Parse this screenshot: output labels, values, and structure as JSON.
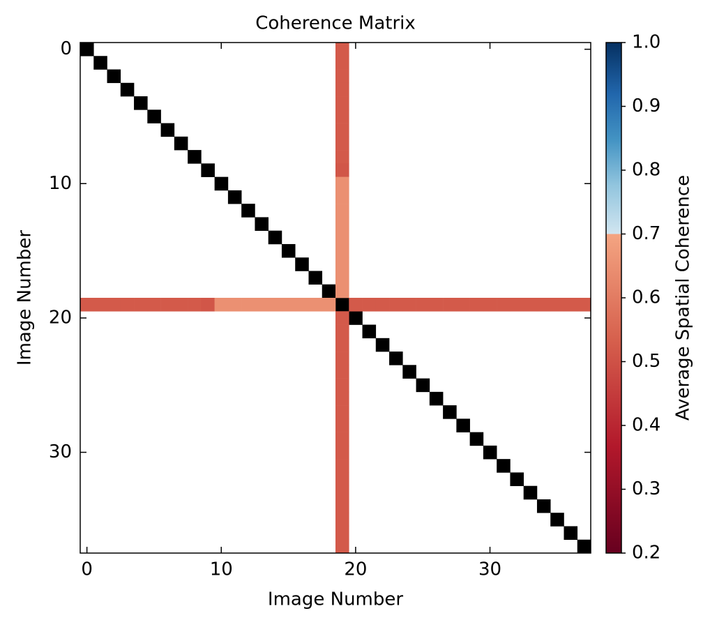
{
  "chart_data": {
    "type": "heatmap",
    "title": "Coherence Matrix",
    "x_label": "Image Number",
    "y_label": "Image Number",
    "colorbar_label": "Average Spatial Coherence",
    "colormap": "RdBu",
    "n": 38,
    "diagonal_color": "#000000",
    "xlim": [
      -0.5,
      37.5
    ],
    "ylim": [
      37.5,
      -0.5
    ],
    "xticks": [
      0,
      10,
      20,
      30
    ],
    "yticks": [
      0,
      10,
      20,
      30
    ],
    "clim": [
      0.2,
      1
    ],
    "cticks": [
      0.2,
      0.3,
      0.4,
      0.5,
      0.6,
      0.7,
      0.8,
      0.9,
      {
        "value": 1,
        "label": "1.0"
      }
    ],
    "cells": [
      [
        0,
        19,
        0.52
      ],
      [
        1,
        19,
        0.52
      ],
      [
        2,
        19,
        0.52
      ],
      [
        3,
        19,
        0.52
      ],
      [
        4,
        19,
        0.52
      ],
      [
        5,
        19,
        0.52
      ],
      [
        6,
        19,
        0.52
      ],
      [
        7,
        19,
        0.52
      ],
      [
        8,
        19,
        0.52
      ],
      [
        9,
        19,
        0.51
      ],
      [
        10,
        19,
        0.65
      ],
      [
        11,
        19,
        0.65
      ],
      [
        12,
        19,
        0.65
      ],
      [
        13,
        19,
        0.65
      ],
      [
        14,
        19,
        0.65
      ],
      [
        15,
        19,
        0.65
      ],
      [
        16,
        19,
        0.65
      ],
      [
        17,
        19,
        0.65
      ],
      [
        18,
        19,
        0.65
      ],
      [
        20,
        19,
        0.52
      ],
      [
        21,
        19,
        0.52
      ],
      [
        22,
        19,
        0.52
      ],
      [
        23,
        19,
        0.52
      ],
      [
        24,
        19,
        0.52
      ],
      [
        25,
        19,
        0.52
      ],
      [
        26,
        19,
        0.52
      ],
      [
        27,
        19,
        0.52
      ],
      [
        28,
        19,
        0.52
      ],
      [
        29,
        19,
        0.52
      ],
      [
        30,
        19,
        0.52
      ],
      [
        31,
        19,
        0.52
      ],
      [
        32,
        19,
        0.52
      ],
      [
        33,
        19,
        0.52
      ],
      [
        34,
        19,
        0.52
      ],
      [
        35,
        19,
        0.52
      ],
      [
        36,
        19,
        0.52
      ],
      [
        37,
        19,
        0.52
      ],
      [
        19,
        0,
        0.52
      ],
      [
        19,
        1,
        0.52
      ],
      [
        19,
        2,
        0.52
      ],
      [
        19,
        3,
        0.52
      ],
      [
        19,
        4,
        0.52
      ],
      [
        19,
        5,
        0.52
      ],
      [
        19,
        6,
        0.52
      ],
      [
        19,
        7,
        0.52
      ],
      [
        19,
        8,
        0.52
      ],
      [
        19,
        9,
        0.51
      ],
      [
        19,
        10,
        0.65
      ],
      [
        19,
        11,
        0.65
      ],
      [
        19,
        12,
        0.65
      ],
      [
        19,
        13,
        0.65
      ],
      [
        19,
        14,
        0.65
      ],
      [
        19,
        15,
        0.65
      ],
      [
        19,
        16,
        0.65
      ],
      [
        19,
        17,
        0.65
      ],
      [
        19,
        18,
        0.65
      ],
      [
        19,
        20,
        0.52
      ],
      [
        19,
        21,
        0.52
      ],
      [
        19,
        22,
        0.52
      ],
      [
        19,
        23,
        0.52
      ],
      [
        19,
        24,
        0.52
      ],
      [
        19,
        25,
        0.52
      ],
      [
        19,
        26,
        0.52
      ],
      [
        19,
        27,
        0.52
      ],
      [
        19,
        28,
        0.52
      ],
      [
        19,
        29,
        0.52
      ],
      [
        19,
        30,
        0.52
      ],
      [
        19,
        31,
        0.52
      ],
      [
        19,
        32,
        0.52
      ],
      [
        19,
        33,
        0.52
      ],
      [
        19,
        34,
        0.52
      ],
      [
        19,
        35,
        0.52
      ],
      [
        19,
        36,
        0.52
      ],
      [
        19,
        37,
        0.52
      ]
    ]
  }
}
